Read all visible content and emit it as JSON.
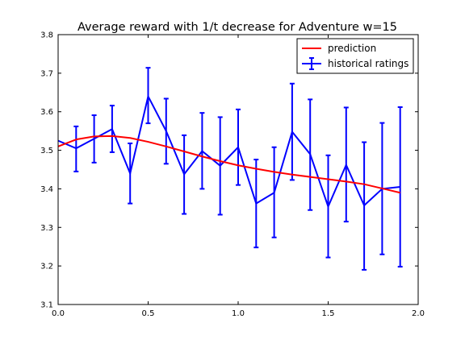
{
  "chart_data": {
    "type": "line",
    "title": "Average reward with 1/t decrease for Adventure w=15",
    "xlabel": "",
    "ylabel": "",
    "xlim": [
      0.0,
      2.0
    ],
    "ylim": [
      3.1,
      3.8
    ],
    "xticks": [
      "0.0",
      "0.5",
      "1.0",
      "1.5",
      "2.0"
    ],
    "yticks": [
      "3.1",
      "3.2",
      "3.3",
      "3.4",
      "3.5",
      "3.6",
      "3.7",
      "3.8"
    ],
    "grid": false,
    "legend_position": "top-right",
    "series": [
      {
        "name": "prediction",
        "color": "#ff0000",
        "x": [
          0.0,
          0.1,
          0.2,
          0.3,
          0.4,
          0.5,
          0.6,
          0.7,
          0.8,
          0.9,
          1.0,
          1.1,
          1.2,
          1.3,
          1.4,
          1.5,
          1.6,
          1.7,
          1.8,
          1.9
        ],
        "y": [
          3.51,
          3.528,
          3.536,
          3.537,
          3.532,
          3.522,
          3.51,
          3.497,
          3.484,
          3.472,
          3.461,
          3.452,
          3.444,
          3.437,
          3.431,
          3.425,
          3.419,
          3.412,
          3.401,
          3.39
        ]
      },
      {
        "name": "historical ratings",
        "color": "#0000ff",
        "x": [
          0.0,
          0.1,
          0.2,
          0.3,
          0.4,
          0.5,
          0.6,
          0.7,
          0.8,
          0.9,
          1.0,
          1.1,
          1.2,
          1.3,
          1.4,
          1.5,
          1.6,
          1.7,
          1.8,
          1.9
        ],
        "y": [
          3.525,
          3.505,
          3.53,
          3.555,
          3.44,
          3.64,
          3.55,
          3.438,
          3.498,
          3.46,
          3.508,
          3.362,
          3.39,
          3.548,
          3.49,
          3.354,
          3.462,
          3.357,
          3.4,
          3.405
        ],
        "err_low": [
          null,
          3.445,
          3.468,
          3.495,
          3.362,
          3.57,
          3.465,
          3.335,
          3.4,
          3.333,
          3.41,
          3.248,
          3.274,
          3.423,
          3.345,
          3.222,
          3.315,
          3.19,
          3.23,
          3.198
        ],
        "err_high": [
          null,
          3.562,
          3.591,
          3.616,
          3.518,
          3.714,
          3.634,
          3.539,
          3.597,
          3.586,
          3.606,
          3.476,
          3.508,
          3.673,
          3.632,
          3.487,
          3.611,
          3.521,
          3.571,
          3.612
        ]
      }
    ]
  }
}
